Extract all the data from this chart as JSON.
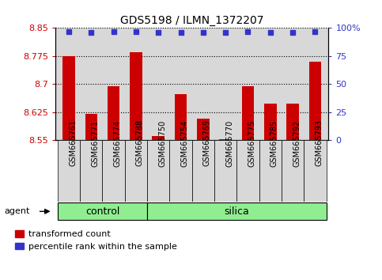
{
  "title": "GDS5198 / ILMN_1372207",
  "samples": [
    "GSM665761",
    "GSM665771",
    "GSM665774",
    "GSM665788",
    "GSM665750",
    "GSM665754",
    "GSM665769",
    "GSM665770",
    "GSM665775",
    "GSM665785",
    "GSM665792",
    "GSM665793"
  ],
  "bar_values": [
    8.775,
    8.62,
    8.695,
    8.785,
    8.56,
    8.672,
    8.608,
    8.552,
    8.695,
    8.648,
    8.648,
    8.76
  ],
  "percentile_values": [
    97,
    96,
    97,
    97,
    96,
    96,
    96,
    96,
    97,
    96,
    96,
    97
  ],
  "bar_color": "#cc0000",
  "dot_color": "#3333cc",
  "ylim_left": [
    8.55,
    8.85
  ],
  "ylim_right": [
    0,
    100
  ],
  "yticks_left": [
    8.55,
    8.625,
    8.7,
    8.775,
    8.85
  ],
  "yticks_right": [
    0,
    25,
    50,
    75,
    100
  ],
  "ylabel_left_color": "#cc0000",
  "ylabel_right_color": "#3333cc",
  "n_control": 4,
  "n_silica": 8,
  "control_color": "#90ee90",
  "silica_color": "#90ee90",
  "agent_label": "agent",
  "background_color": "#ffffff",
  "plot_bg_color": "#d8d8d8",
  "xtick_bg_color": "#d8d8d8",
  "legend_red_label": "transformed count",
  "legend_blue_label": "percentile rank within the sample",
  "grid_color": "black",
  "title_fontsize": 10
}
